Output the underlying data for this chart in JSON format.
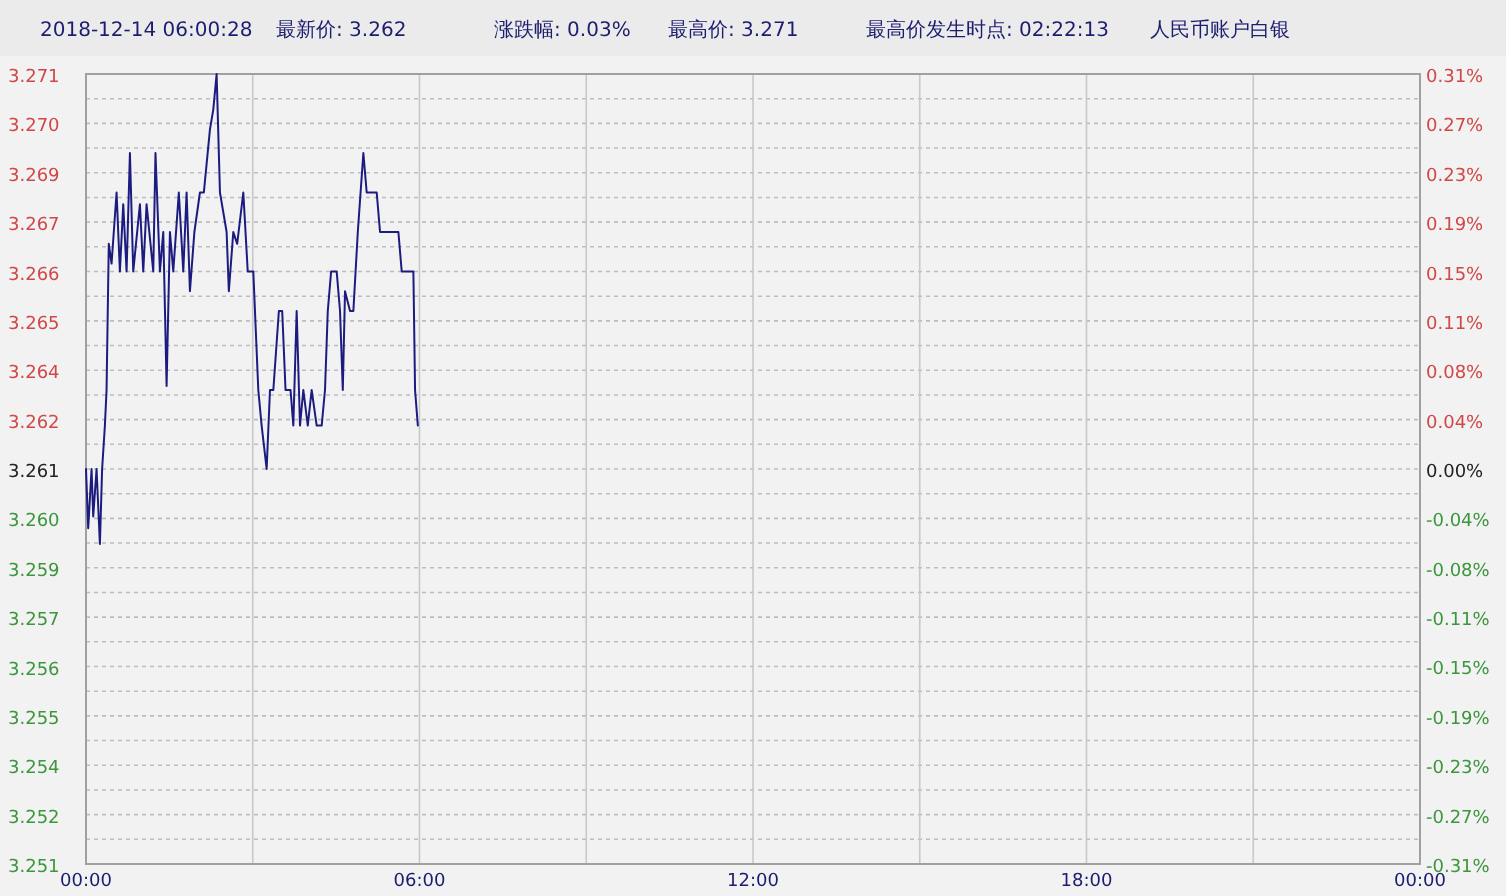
{
  "chart_data": {
    "type": "line",
    "annotations": [
      "2018-12-14 06:00:28",
      "最新价: 3.262",
      "涨跌幅: 0.03%",
      "最高价: 3.271",
      "最高价发生时点:  02:22:13",
      "人民币账户白银"
    ],
    "x": [
      0,
      0.04,
      0.1,
      0.13,
      0.19,
      0.25,
      0.29,
      0.34,
      0.37,
      0.41,
      0.46,
      0.52,
      0.55,
      0.61,
      0.67,
      0.73,
      0.79,
      0.85,
      0.97,
      1.03,
      1.09,
      1.21,
      1.25,
      1.33,
      1.39,
      1.45,
      1.51,
      1.57,
      1.67,
      1.75,
      1.81,
      1.87,
      1.95,
      2.05,
      2.12,
      2.23,
      2.29,
      2.35,
      2.41,
      2.53,
      2.57,
      2.65,
      2.72,
      2.83,
      2.91,
      3.01,
      3.1,
      3.16,
      3.25,
      3.31,
      3.37,
      3.47,
      3.53,
      3.59,
      3.68,
      3.73,
      3.79,
      3.85,
      3.91,
      3.99,
      4.06,
      4.15,
      4.24,
      4.3,
      4.35,
      4.41,
      4.51,
      4.57,
      4.62,
      4.66,
      4.75,
      4.81,
      4.89,
      4.99,
      5.05,
      5.23,
      5.29,
      5.62,
      5.68,
      5.89,
      5.92,
      5.97
    ],
    "series": [
      {
        "color": "#1c1c80",
        "values": [
          3.261,
          3.2595,
          3.261,
          3.2598,
          3.261,
          3.2591,
          3.261,
          3.2621,
          3.263,
          3.2667,
          3.2662,
          3.2674,
          3.268,
          3.266,
          3.2677,
          3.266,
          3.269,
          3.266,
          3.2677,
          3.266,
          3.2677,
          3.266,
          3.269,
          3.266,
          3.267,
          3.2631,
          3.267,
          3.266,
          3.268,
          3.266,
          3.268,
          3.2655,
          3.267,
          3.268,
          3.268,
          3.2696,
          3.2701,
          3.271,
          3.268,
          3.267,
          3.2655,
          3.267,
          3.2667,
          3.268,
          3.266,
          3.266,
          3.263,
          3.2621,
          3.261,
          3.263,
          3.263,
          3.265,
          3.265,
          3.263,
          3.263,
          3.2621,
          3.265,
          3.2621,
          3.263,
          3.2621,
          3.263,
          3.2621,
          3.2621,
          3.263,
          3.265,
          3.266,
          3.266,
          3.265,
          3.263,
          3.2655,
          3.265,
          3.265,
          3.267,
          3.269,
          3.268,
          3.268,
          3.267,
          3.267,
          3.266,
          3.266,
          3.263,
          3.2621
        ]
      }
    ],
    "xlim": [
      0,
      24
    ],
    "xticks": [
      {
        "value": 0,
        "label": "00:00"
      },
      {
        "value": 3,
        "label": null
      },
      {
        "value": 6,
        "label": "06:00"
      },
      {
        "value": 9,
        "label": null
      },
      {
        "value": 12,
        "label": "12:00"
      },
      {
        "value": 15,
        "label": null
      },
      {
        "value": 18,
        "label": "18:00"
      },
      {
        "value": 21,
        "label": null
      },
      {
        "value": 24,
        "label": "00:00"
      }
    ],
    "ylim": [
      3.251,
      3.271
    ],
    "yticks": [
      {
        "value": 3.271,
        "label": "3.271"
      },
      {
        "value": 3.270375,
        "label": null
      },
      {
        "value": 3.26975,
        "label": "3.270"
      },
      {
        "value": 3.269125,
        "label": null
      },
      {
        "value": 3.2685,
        "label": "3.269"
      },
      {
        "value": 3.267875,
        "label": null
      },
      {
        "value": 3.26725,
        "label": "3.267"
      },
      {
        "value": 3.266625,
        "label": null
      },
      {
        "value": 3.266,
        "label": "3.266"
      },
      {
        "value": 3.265375,
        "label": null
      },
      {
        "value": 3.26475,
        "label": "3.265"
      },
      {
        "value": 3.264125,
        "label": null
      },
      {
        "value": 3.2635,
        "label": "3.264"
      },
      {
        "value": 3.262875,
        "label": null
      },
      {
        "value": 3.26225,
        "label": "3.262"
      },
      {
        "value": 3.261625,
        "label": null
      },
      {
        "value": 3.261,
        "label": "3.261"
      },
      {
        "value": 3.260375,
        "label": null
      },
      {
        "value": 3.25975,
        "label": "3.260"
      },
      {
        "value": 3.259125,
        "label": null
      },
      {
        "value": 3.2585,
        "label": "3.259"
      },
      {
        "value": 3.257875,
        "label": null
      },
      {
        "value": 3.25725,
        "label": "3.257"
      },
      {
        "value": 3.256625,
        "label": null
      },
      {
        "value": 3.256,
        "label": "3.256"
      },
      {
        "value": 3.255375,
        "label": null
      },
      {
        "value": 3.25475,
        "label": "3.255"
      },
      {
        "value": 3.254125,
        "label": null
      },
      {
        "value": 3.2535,
        "label": "3.254"
      },
      {
        "value": 3.252875,
        "label": null
      },
      {
        "value": 3.25225,
        "label": "3.252"
      },
      {
        "value": 3.251625,
        "label": null
      },
      {
        "value": 3.251,
        "label": "3.251"
      }
    ],
    "y2lim": [
      -0.3067,
      0.3067
    ],
    "y2ticks": [
      {
        "value": 0.3067,
        "label": "0.31%"
      },
      {
        "value": 0.2683,
        "label": "0.27%"
      },
      {
        "value": 0.23,
        "label": "0.23%"
      },
      {
        "value": 0.1917,
        "label": "0.19%"
      },
      {
        "value": 0.1533,
        "label": "0.15%"
      },
      {
        "value": 0.1149,
        "label": "0.11%"
      },
      {
        "value": 0.0767,
        "label": "0.08%"
      },
      {
        "value": 0.0383,
        "label": "0.04%"
      },
      {
        "value": 0,
        "label": "0.00%"
      },
      {
        "value": -0.0383,
        "label": "-0.04%"
      },
      {
        "value": -0.0767,
        "label": "-0.08%"
      },
      {
        "value": -0.1149,
        "label": "-0.11%"
      },
      {
        "value": -0.1533,
        "label": "-0.15%"
      },
      {
        "value": -0.1917,
        "label": "-0.19%"
      },
      {
        "value": -0.23,
        "label": "-0.23%"
      },
      {
        "value": -0.2683,
        "label": "-0.27%"
      },
      {
        "value": -0.3067,
        "label": "-0.31%"
      }
    ],
    "grid": true,
    "line_style": "solid"
  }
}
